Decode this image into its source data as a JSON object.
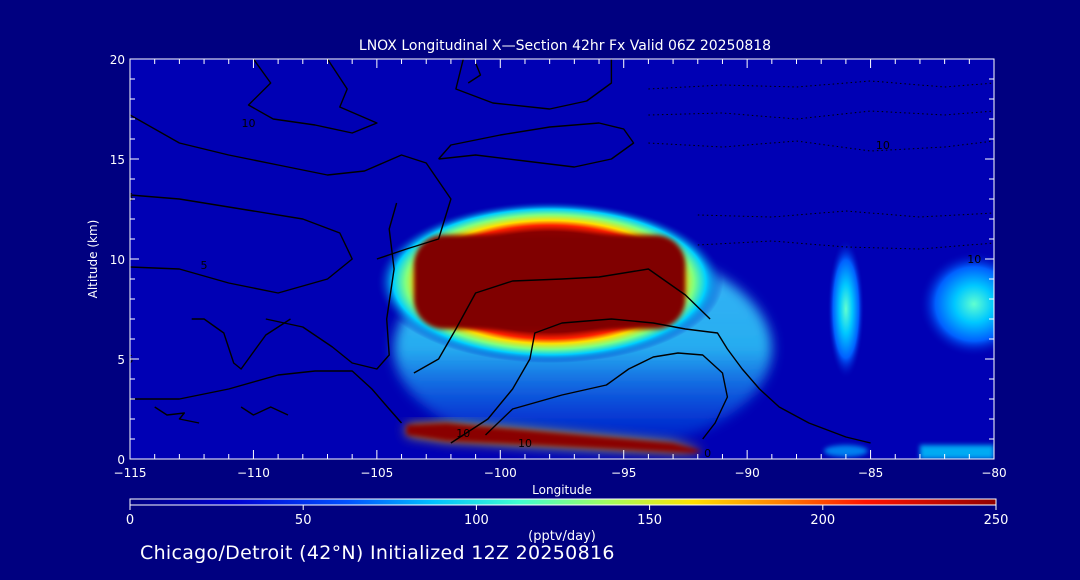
{
  "chart_data": {
    "type": "heatmap",
    "title": "LNOX Longitudinal X—Section 42hr  Fx Valid 06Z 20250818",
    "xlabel": "Longitude",
    "ylabel": "Altitude (km)",
    "xlim": [
      -115,
      -80
    ],
    "ylim": [
      0,
      20
    ],
    "x_ticks": [
      -115,
      -110,
      -105,
      -100,
      -95,
      -90,
      -85,
      -80
    ],
    "x_tick_labels": [
      "−115",
      "−110",
      "−105",
      "−100",
      "−95",
      "−90",
      "−85",
      "−80"
    ],
    "y_ticks": [
      0,
      5,
      10,
      15,
      20
    ],
    "y_tick_labels": [
      "0",
      "5",
      "10",
      "15",
      "20"
    ],
    "colorbar": {
      "label": "(pptv/day)",
      "min": 0,
      "max": 250,
      "ticks": [
        0,
        50,
        100,
        150,
        200,
        250
      ],
      "tick_labels": [
        "0",
        "50",
        "100",
        "150",
        "200",
        "250"
      ]
    },
    "features": [
      {
        "name": "upper-maximum",
        "lon": [
          -103.5,
          -92.5
        ],
        "alt_km": [
          6.5,
          11.2
        ],
        "value": 250
      },
      {
        "name": "low-level-maximum",
        "lon": [
          -103.8,
          -91.8
        ],
        "alt_km": [
          0.3,
          1.7
        ],
        "value": 250
      },
      {
        "name": "column-near-86W",
        "lon": [
          -86.5,
          -85.5
        ],
        "alt_km": [
          4,
          11
        ],
        "value": 80
      },
      {
        "name": "patch-near-81W",
        "lon": [
          -83,
          -80
        ],
        "alt_km": [
          5.5,
          10
        ],
        "value": 85
      },
      {
        "name": "surface-patch-east",
        "lon": [
          -83,
          -80
        ],
        "alt_km": [
          0,
          0.7
        ],
        "value": 80
      }
    ],
    "contour_labels": [
      "10",
      "10",
      "10",
      "10",
      "10",
      "0",
      "5",
      "5",
      "5"
    ]
  },
  "footer": {
    "text": "Chicago/Detroit (42°N) Initialized 12Z 20250816"
  },
  "colors": {
    "background": "#000080",
    "axes_frame": "#ffffff",
    "field_low": "#0000b4",
    "field_high": "#800000",
    "contour": "#000000"
  }
}
